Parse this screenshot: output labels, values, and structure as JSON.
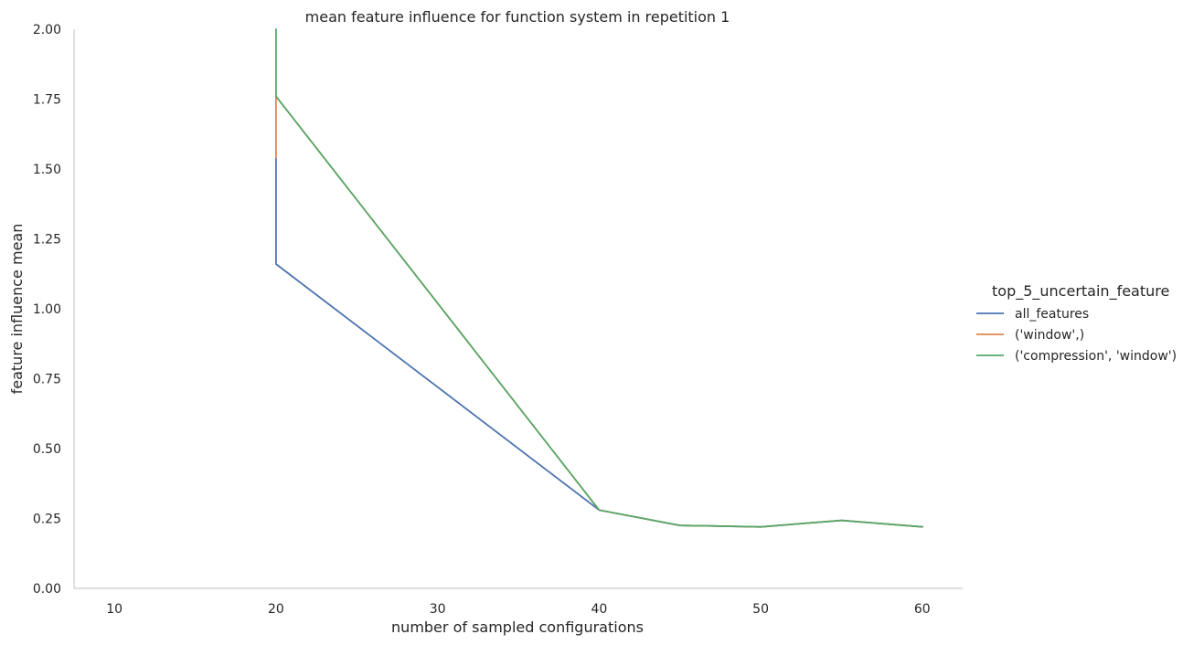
{
  "chart_data": {
    "type": "line",
    "title": "mean feature influence for function system in repetition 1",
    "xlabel": "number of sampled configurations",
    "ylabel": "feature influence mean",
    "xlim": [
      7.5,
      62.5
    ],
    "ylim": [
      0,
      2
    ],
    "xticks": [
      10,
      20,
      30,
      40,
      50,
      60
    ],
    "yticks": [
      0,
      0.25,
      0.5,
      0.75,
      1.0,
      1.25,
      1.5,
      1.75,
      2.0
    ],
    "ytick_labels": [
      "0.00",
      "0.25",
      "0.50",
      "0.75",
      "1.00",
      "1.25",
      "1.50",
      "1.75",
      "2.00"
    ],
    "grid": false,
    "legend_position": "right",
    "legend_title": "top_5_uncertain_feature",
    "series": [
      {
        "name": "all_features",
        "color": "#4c72b0",
        "points": [
          [
            20,
            1.54
          ],
          [
            20,
            1.16
          ],
          [
            40,
            0.28
          ],
          [
            45,
            0.225
          ],
          [
            50,
            0.22
          ],
          [
            55,
            0.243
          ],
          [
            60,
            0.22
          ]
        ]
      },
      {
        "name": "('window',)",
        "color": "#dd8452",
        "points": [
          [
            20,
            1.54
          ],
          [
            20,
            1.76
          ],
          [
            40,
            0.28
          ],
          [
            45,
            0.225
          ],
          [
            50,
            0.22
          ],
          [
            55,
            0.243
          ],
          [
            60,
            0.22
          ]
        ]
      },
      {
        "name": "('compression', 'window')",
        "color": "#55a868",
        "points": [
          [
            20,
            2.0
          ],
          [
            20,
            1.76
          ],
          [
            40,
            0.28
          ],
          [
            45,
            0.225
          ],
          [
            50,
            0.22
          ],
          [
            55,
            0.243
          ],
          [
            60,
            0.22
          ]
        ]
      }
    ]
  }
}
